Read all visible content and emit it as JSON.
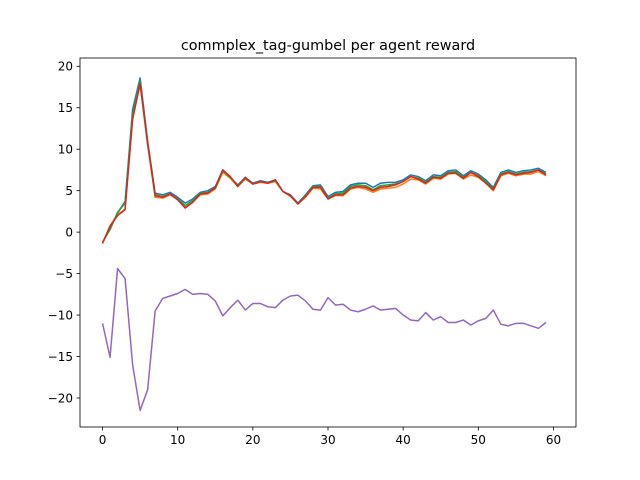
{
  "chart_data": {
    "type": "line",
    "title": "commplex_tag-gumbel per agent reward",
    "xlabel": "",
    "ylabel": "",
    "xlim": [
      -3,
      63
    ],
    "ylim": [
      -23.5,
      21
    ],
    "xticks": [
      0,
      10,
      20,
      30,
      40,
      50,
      60
    ],
    "yticks": [
      -20,
      -15,
      -10,
      -5,
      0,
      5,
      10,
      15,
      20
    ],
    "grid": false,
    "x": [
      0,
      1,
      2,
      3,
      4,
      5,
      6,
      7,
      8,
      9,
      10,
      11,
      12,
      13,
      14,
      15,
      16,
      17,
      18,
      19,
      20,
      21,
      22,
      23,
      24,
      25,
      26,
      27,
      28,
      29,
      30,
      31,
      32,
      33,
      34,
      35,
      36,
      37,
      38,
      39,
      40,
      41,
      42,
      43,
      44,
      45,
      46,
      47,
      48,
      49,
      50,
      51,
      52,
      53,
      54,
      55,
      56,
      57,
      58,
      59
    ],
    "series": [
      {
        "color": "#1f77b4",
        "values": [
          -1.3,
          0.5,
          2.3,
          3.7,
          14.8,
          18.6,
          11.0,
          4.7,
          4.5,
          4.8,
          4.2,
          3.5,
          4.0,
          4.8,
          5.0,
          5.5,
          7.5,
          6.6,
          5.7,
          6.6,
          5.9,
          6.2,
          6.0,
          6.3,
          4.9,
          4.5,
          3.5,
          4.5,
          5.6,
          5.7,
          4.3,
          4.8,
          4.9,
          5.7,
          5.9,
          5.9,
          5.4,
          5.9,
          6.0,
          6.0,
          6.3,
          6.9,
          6.7,
          6.2,
          6.9,
          6.8,
          7.4,
          7.5,
          6.8,
          7.4,
          7.0,
          6.3,
          5.4,
          7.2,
          7.5,
          7.2,
          7.4,
          7.5,
          7.7,
          7.2
        ]
      },
      {
        "color": "#ff7f0e",
        "values": [
          -1.4,
          0.8,
          2.1,
          2.8,
          14.0,
          17.8,
          10.5,
          4.2,
          4.1,
          4.5,
          3.9,
          3.0,
          3.6,
          4.5,
          4.6,
          5.2,
          7.2,
          6.5,
          5.5,
          6.4,
          5.8,
          6.0,
          5.9,
          6.1,
          4.9,
          4.3,
          3.4,
          4.2,
          5.3,
          5.2,
          4.0,
          4.4,
          4.4,
          5.2,
          5.4,
          5.2,
          4.8,
          5.2,
          5.3,
          5.4,
          5.8,
          6.4,
          6.3,
          5.8,
          6.5,
          6.4,
          7.0,
          7.1,
          6.4,
          6.9,
          6.6,
          5.9,
          5.0,
          6.8,
          7.1,
          6.8,
          7.0,
          7.0,
          7.3,
          6.8
        ]
      },
      {
        "color": "#2ca02c",
        "values": [
          -1.2,
          0.3,
          2.4,
          3.5,
          14.2,
          18.2,
          10.8,
          4.5,
          4.3,
          4.6,
          4.0,
          3.2,
          3.8,
          4.7,
          4.8,
          5.3,
          7.4,
          6.6,
          5.6,
          6.5,
          5.8,
          6.1,
          5.9,
          6.2,
          4.9,
          4.4,
          3.4,
          4.4,
          5.5,
          5.5,
          4.1,
          4.6,
          4.7,
          5.5,
          5.7,
          5.6,
          5.1,
          5.6,
          5.7,
          5.8,
          6.1,
          6.7,
          6.5,
          6.0,
          6.7,
          6.6,
          7.2,
          7.3,
          6.6,
          7.2,
          6.8,
          6.1,
          5.2,
          7.0,
          7.3,
          7.0,
          7.2,
          7.3,
          7.5,
          7.0
        ]
      },
      {
        "color": "#d62728",
        "values": [
          -1.3,
          0.7,
          2.0,
          2.7,
          13.6,
          17.9,
          10.7,
          4.4,
          4.2,
          4.6,
          3.9,
          2.9,
          3.6,
          4.6,
          4.7,
          5.4,
          7.5,
          6.7,
          5.5,
          6.6,
          5.8,
          6.1,
          5.9,
          6.3,
          4.9,
          4.4,
          3.4,
          4.3,
          5.4,
          5.4,
          4.0,
          4.5,
          4.5,
          5.3,
          5.5,
          5.4,
          5.0,
          5.4,
          5.5,
          5.7,
          6.1,
          6.7,
          6.4,
          5.9,
          6.6,
          6.5,
          7.1,
          7.1,
          6.5,
          7.2,
          6.7,
          5.9,
          5.1,
          6.9,
          7.2,
          6.9,
          7.1,
          7.2,
          7.5,
          6.9
        ]
      },
      {
        "color": "#9467bd",
        "values": [
          -11.0,
          -15.1,
          -4.4,
          -5.6,
          -16.0,
          -21.5,
          -19.0,
          -9.5,
          -8.0,
          -7.7,
          -7.4,
          -6.9,
          -7.5,
          -7.4,
          -7.5,
          -8.3,
          -10.1,
          -9.1,
          -8.2,
          -9.4,
          -8.6,
          -8.6,
          -9.0,
          -9.1,
          -8.2,
          -7.7,
          -7.6,
          -8.3,
          -9.3,
          -9.4,
          -7.9,
          -8.8,
          -8.7,
          -9.4,
          -9.6,
          -9.3,
          -8.9,
          -9.4,
          -9.3,
          -9.2,
          -10.0,
          -10.6,
          -10.7,
          -9.7,
          -10.6,
          -10.2,
          -10.9,
          -10.9,
          -10.6,
          -11.2,
          -10.7,
          -10.4,
          -9.4,
          -11.1,
          -11.3,
          -11.0,
          -11.0,
          -11.3,
          -11.6,
          -10.9
        ]
      }
    ]
  }
}
